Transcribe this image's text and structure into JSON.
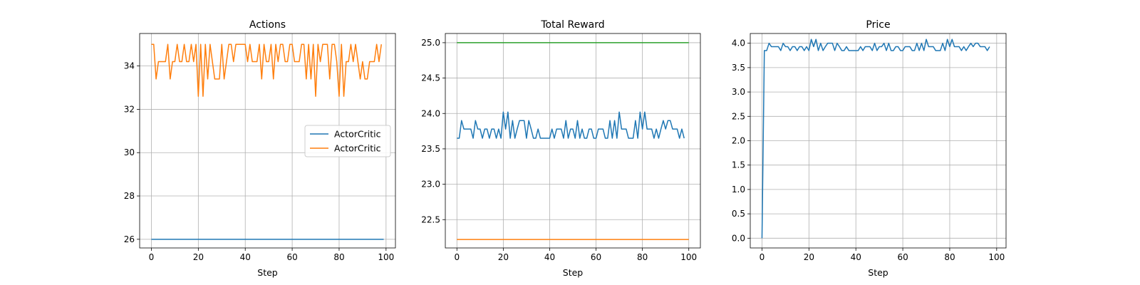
{
  "chart_data": [
    {
      "type": "line",
      "title": "Actions",
      "xlabel": "Step",
      "ylabel": "",
      "xlim": [
        -5,
        104
      ],
      "ylim": [
        25.6,
        35.5
      ],
      "xticks": [
        0,
        20,
        40,
        60,
        80,
        100
      ],
      "yticks": [
        26,
        28,
        30,
        32,
        34
      ],
      "grid": true,
      "legend": {
        "placement": "center-right",
        "entries": [
          "ActorCritic",
          "ActorCritic"
        ]
      },
      "series": [
        {
          "name": "ActorCritic",
          "color": "#1f77b4",
          "x_start": 0,
          "values": [
            26,
            26,
            26,
            26,
            26,
            26,
            26,
            26,
            26,
            26,
            26,
            26,
            26,
            26,
            26,
            26,
            26,
            26,
            26,
            26,
            26,
            26,
            26,
            26,
            26,
            26,
            26,
            26,
            26,
            26,
            26,
            26,
            26,
            26,
            26,
            26,
            26,
            26,
            26,
            26,
            26,
            26,
            26,
            26,
            26,
            26,
            26,
            26,
            26,
            26,
            26,
            26,
            26,
            26,
            26,
            26,
            26,
            26,
            26,
            26,
            26,
            26,
            26,
            26,
            26,
            26,
            26,
            26,
            26,
            26,
            26,
            26,
            26,
            26,
            26,
            26,
            26,
            26,
            26,
            26,
            26,
            26,
            26,
            26,
            26,
            26,
            26,
            26,
            26,
            26,
            26,
            26,
            26,
            26,
            26,
            26,
            26,
            26,
            26,
            26
          ]
        },
        {
          "name": "ActorCritic",
          "color": "#ff7f0e",
          "x_start": 0,
          "values": [
            35,
            35,
            33.4,
            34.2,
            34.2,
            34.2,
            34.2,
            35,
            33.4,
            34.2,
            34.2,
            35,
            34.2,
            34.2,
            35,
            34.2,
            34.2,
            35,
            34.2,
            35,
            32.6,
            35,
            32.6,
            35,
            33.4,
            35,
            34.2,
            33.4,
            33.4,
            33.4,
            35,
            33.4,
            34.2,
            35,
            35,
            34.2,
            35,
            35,
            35,
            35,
            35,
            34.2,
            35,
            34.2,
            34.2,
            34.2,
            35,
            33.4,
            35,
            34.2,
            34.2,
            35,
            33.4,
            35,
            34.2,
            35,
            35,
            34.2,
            34.2,
            35,
            35,
            34.2,
            34.2,
            34.2,
            35,
            35,
            33.4,
            35,
            33.4,
            35,
            32.6,
            35,
            34.2,
            35,
            35,
            35,
            33.4,
            35,
            35,
            34.2,
            32.6,
            35,
            32.6,
            34.2,
            34.2,
            35,
            34.2,
            35,
            34.2,
            33.4,
            34.2,
            33.4,
            33.4,
            34.2,
            34.2,
            34.2,
            35,
            34.2,
            35
          ]
        }
      ]
    },
    {
      "type": "line",
      "title": "Total Reward",
      "xlabel": "Step",
      "ylabel": "",
      "xlim": [
        -5,
        105
      ],
      "ylim": [
        22.1,
        25.13
      ],
      "xticks": [
        0,
        20,
        40,
        60,
        80,
        100
      ],
      "yticks": [
        22.5,
        23.0,
        23.5,
        24.0,
        24.5,
        25.0
      ],
      "ytick_labels": [
        "22.5",
        "23.0",
        "23.5",
        "24.0",
        "24.5",
        "25.0"
      ],
      "grid": true,
      "series": [
        {
          "color": "#2ca02c",
          "x": [
            0,
            100
          ],
          "values": [
            25.0,
            25.0
          ]
        },
        {
          "color": "#ff7f0e",
          "x": [
            0,
            100
          ],
          "values": [
            22.22,
            22.22
          ]
        },
        {
          "color": "#1f77b4",
          "x_start": 0,
          "values": [
            23.65,
            23.65,
            23.9,
            23.78,
            23.78,
            23.78,
            23.78,
            23.65,
            23.9,
            23.78,
            23.78,
            23.65,
            23.78,
            23.78,
            23.65,
            23.78,
            23.78,
            23.65,
            23.78,
            23.65,
            24.02,
            23.78,
            24.02,
            23.65,
            23.9,
            23.65,
            23.78,
            23.9,
            23.9,
            23.9,
            23.65,
            23.9,
            23.78,
            23.65,
            23.65,
            23.78,
            23.65,
            23.65,
            23.65,
            23.65,
            23.65,
            23.78,
            23.65,
            23.78,
            23.78,
            23.78,
            23.65,
            23.9,
            23.65,
            23.78,
            23.78,
            23.65,
            23.9,
            23.65,
            23.78,
            23.65,
            23.65,
            23.78,
            23.78,
            23.65,
            23.65,
            23.78,
            23.78,
            23.78,
            23.65,
            23.65,
            23.9,
            23.65,
            23.9,
            23.65,
            24.02,
            23.78,
            23.78,
            23.78,
            23.65,
            23.65,
            23.65,
            23.9,
            23.65,
            24.02,
            23.78,
            24.02,
            23.78,
            23.78,
            23.78,
            23.65,
            23.78,
            23.65,
            23.78,
            23.9,
            23.78,
            23.9,
            23.9,
            23.78,
            23.78,
            23.78,
            23.65,
            23.78,
            23.65
          ]
        }
      ]
    },
    {
      "type": "line",
      "title": "Price",
      "xlabel": "Step",
      "ylabel": "",
      "xlim": [
        -5,
        104
      ],
      "ylim": [
        -0.2,
        4.2
      ],
      "xticks": [
        0,
        20,
        40,
        60,
        80,
        100
      ],
      "yticks": [
        0,
        0.5,
        1.0,
        1.5,
        2.0,
        2.5,
        3.0,
        3.5,
        4.0
      ],
      "ytick_labels": [
        "0.0",
        "0.5",
        "1.0",
        "1.5",
        "2.0",
        "2.5",
        "3.0",
        "3.5",
        "4.0"
      ],
      "grid": true,
      "series": [
        {
          "color": "#1f77b4",
          "x_start": 0,
          "values": [
            0,
            3.85,
            3.85,
            4.0,
            3.93,
            3.93,
            3.93,
            3.93,
            3.85,
            4.0,
            3.93,
            3.93,
            3.85,
            3.93,
            3.93,
            3.85,
            3.93,
            3.93,
            3.85,
            3.93,
            3.85,
            4.08,
            3.93,
            4.08,
            3.85,
            4.0,
            3.85,
            3.93,
            4.0,
            4.0,
            4.0,
            3.85,
            4.0,
            3.93,
            3.85,
            3.85,
            3.93,
            3.85,
            3.85,
            3.85,
            3.85,
            3.85,
            3.93,
            3.85,
            3.93,
            3.93,
            3.93,
            3.85,
            4.0,
            3.85,
            3.93,
            3.93,
            4.0,
            3.85,
            4.0,
            3.85,
            3.85,
            3.93,
            3.93,
            3.85,
            3.85,
            3.93,
            3.93,
            3.93,
            3.85,
            3.85,
            4.0,
            3.85,
            4.0,
            3.85,
            4.08,
            3.93,
            3.93,
            3.93,
            3.85,
            3.85,
            3.85,
            4.0,
            3.85,
            4.08,
            3.93,
            4.08,
            3.93,
            3.93,
            3.93,
            3.85,
            3.93,
            3.85,
            3.93,
            4.0,
            3.93,
            4.0,
            4.0,
            3.93,
            3.93,
            3.93,
            3.85,
            3.93
          ]
        }
      ]
    }
  ]
}
